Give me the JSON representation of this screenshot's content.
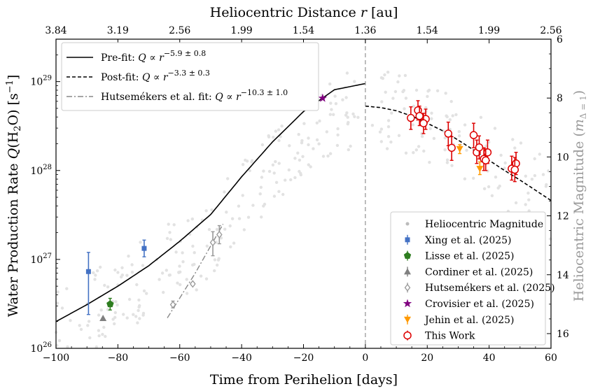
{
  "chart_data": {
    "type": "scatter",
    "xlabel": "Time from Perihelion [days]",
    "xlim": [
      -100,
      60
    ],
    "x_ticks": [
      -100,
      -80,
      -60,
      -40,
      -20,
      0,
      20,
      40,
      60
    ],
    "x_tick_labels": [
      "−100",
      "−80",
      "−60",
      "−40",
      "−20",
      "0",
      "20",
      "40",
      "60"
    ],
    "ylabel": "Water Production Rate Q(H₂O) [s⁻¹]",
    "ylabel_parts": {
      "main": "Water Production Rate ",
      "q": "Q",
      "open": "(H",
      "sub": "2",
      "mid": "O) [s",
      "sup": "−1",
      "close": "]"
    },
    "yscale": "log",
    "ylim": [
      1e+26,
      3e+29
    ],
    "y_ticks": [
      1e+26,
      1e+27,
      1e+28,
      1e+29
    ],
    "y_tick_labels": [
      {
        "base": "10",
        "exp": "26"
      },
      {
        "base": "10",
        "exp": "27"
      },
      {
        "base": "10",
        "exp": "28"
      },
      {
        "base": "10",
        "exp": "29"
      }
    ],
    "top_axis": {
      "label": "Heliocentric Distance",
      "label_var": "r",
      "label_unit": "[au]",
      "tick_positions_days": [
        -100,
        -80,
        -60,
        -40,
        -20,
        0,
        20,
        40,
        60
      ],
      "tick_labels": [
        "3.84",
        "3.19",
        "2.56",
        "1.99",
        "1.54",
        "1.36",
        "1.54",
        "1.99",
        "2.56"
      ]
    },
    "right_axis": {
      "label": "Heliocentric Magnitude",
      "label_var": "m",
      "label_sub": "Δ = 1",
      "ylim": [
        6,
        16.5
      ],
      "inverted": true,
      "ticks": [
        6,
        8,
        10,
        12,
        14,
        16
      ],
      "tick_labels": [
        "6",
        "8",
        "10",
        "12",
        "14",
        "16"
      ],
      "color": "#999999"
    },
    "perihelion_line": {
      "x": 0,
      "style": "dashed",
      "color": "#888888"
    },
    "fits": [
      {
        "name": "Pre-fit",
        "expr_base": "Q ∝ r",
        "exponent": "−5.9 ± 0.8",
        "style": "solid",
        "color": "#000000"
      },
      {
        "name": "Post-fit",
        "expr_base": "Q ∝ r",
        "exponent": "−3.3 ± 0.3",
        "style": "dashed",
        "color": "#000000"
      },
      {
        "name": "Hutsemékers et al. fit",
        "expr_base": "Q ∝ r",
        "exponent": "−10.3 ± 1.0",
        "style": "dashdot",
        "color": "#888888"
      }
    ],
    "curves": {
      "pre_fit": {
        "x": [
          -100,
          -90,
          -80,
          -70,
          -60,
          -50,
          -40,
          -30,
          -20,
          -10,
          0
        ],
        "y": [
          2e+26,
          3.1e+26,
          5e+26,
          8.5e+26,
          1.6e+27,
          3.2e+27,
          8.5e+27,
          2.1e+28,
          4.6e+28,
          8.1e+28,
          9.5e+28
        ]
      },
      "post_fit": {
        "x": [
          0,
          5,
          10,
          15,
          20,
          25,
          30,
          35,
          40,
          45,
          50,
          55,
          60
        ],
        "y": [
          5.3e+28,
          5.1e+28,
          4.7e+28,
          4.1e+28,
          3.4e+28,
          2.8e+28,
          2.2e+28,
          1.7e+28,
          1.3e+28,
          1e+28,
          7.8e+27,
          6e+27,
          4.6e+27
        ]
      },
      "hutsemekers_fit": {
        "x": [
          -64,
          -55,
          -46
        ],
        "y": [
          2.2e+26,
          7e+26,
          2.5e+27
        ]
      }
    },
    "series": [
      {
        "name": "Xing et al. (2025)",
        "marker": "square",
        "color": "#4472c4",
        "points": [
          {
            "x": -89.5,
            "y": 7.3e+26,
            "ylo": 2.4e+26,
            "yhi": 1.2e+27
          },
          {
            "x": -71.5,
            "y": 1.33e+27,
            "ylo": 1.07e+27,
            "yhi": 1.65e+27
          }
        ]
      },
      {
        "name": "Lisse et al. (2025)",
        "marker": "pentagon",
        "color": "#2e7d1f",
        "points": [
          {
            "x": -82.5,
            "y": 3.15e+26,
            "ylo": 2.7e+26,
            "yhi": 3.65e+26
          }
        ]
      },
      {
        "name": "Cordiner et al. (2025)",
        "marker": "triangle",
        "color": "#808080",
        "points": [
          {
            "x": -84.8,
            "y": 2.18e+26
          }
        ]
      },
      {
        "name": "Hutsemékers et al. (2025)",
        "marker": "diamond-open",
        "color": "#999999",
        "points": [
          {
            "x": -62.2,
            "y": 3.1e+26,
            "ylo": 2.85e+26,
            "yhi": 3.4e+26
          },
          {
            "x": -55.8,
            "y": 5.3e+26,
            "ylo": 5.1e+26,
            "yhi": 5.5e+26
          },
          {
            "x": -49.3,
            "y": 1.55e+27,
            "ylo": 1.1e+27,
            "yhi": 2.05e+27
          },
          {
            "x": -47.2,
            "y": 1.9e+27,
            "ylo": 1.5e+27,
            "yhi": 2.4e+27
          }
        ]
      },
      {
        "name": "Crovisier et al. (2025)",
        "marker": "star",
        "color": "#800080",
        "points": [
          {
            "x": -13.8,
            "y": 6.5e+28
          }
        ]
      },
      {
        "name": "Jehin et al. (2025)",
        "marker": "triangle-down",
        "color": "#ff9900",
        "points": [
          {
            "x": 30.5,
            "y": 1.75e+28,
            "ylo": 1.55e+28,
            "yhi": 1.95e+28
          },
          {
            "x": 37.0,
            "y": 1.05e+28,
            "ylo": 9e+27,
            "yhi": 1.25e+28
          }
        ]
      },
      {
        "name": "This Work",
        "marker": "circle-open",
        "color": "#dd0000",
        "points": [
          {
            "x": 14.7,
            "y": 3.9e+28,
            "ylo": 2.9e+28,
            "yhi": 5.2e+28
          },
          {
            "x": 17.0,
            "y": 4.75e+28,
            "ylo": 3.7e+28,
            "yhi": 6.1e+28
          },
          {
            "x": 17.5,
            "y": 4.1e+28,
            "ylo": 3.2e+28,
            "yhi": 5.3e+28
          },
          {
            "x": 19.5,
            "y": 3.8e+28,
            "ylo": 2.9e+28,
            "yhi": 4.9e+28
          },
          {
            "x": 18.8,
            "y": 3.4e+28,
            "ylo": 2.6e+28,
            "yhi": 4.4e+28
          },
          {
            "x": 26.8,
            "y": 2.6e+28,
            "ylo": 1.9e+28,
            "yhi": 3.5e+28
          },
          {
            "x": 27.9,
            "y": 1.8e+28,
            "ylo": 1.3e+28,
            "yhi": 2.4e+28
          },
          {
            "x": 35.0,
            "y": 2.5e+28,
            "ylo": 1.8e+28,
            "yhi": 3.4e+28
          },
          {
            "x": 36.0,
            "y": 1.6e+28,
            "ylo": 1.2e+28,
            "yhi": 2.2e+28
          },
          {
            "x": 36.8,
            "y": 1.82e+28,
            "ylo": 1.35e+28,
            "yhi": 2.45e+28
          },
          {
            "x": 38.3,
            "y": 1.35e+28,
            "ylo": 1e+28,
            "yhi": 1.8e+28
          },
          {
            "x": 39.5,
            "y": 1.6e+28,
            "ylo": 1.2e+28,
            "yhi": 2.2e+28
          },
          {
            "x": 38.9,
            "y": 1.3e+28,
            "ylo": 1e+28,
            "yhi": 1.75e+28
          },
          {
            "x": 47.3,
            "y": 1.05e+28,
            "ylo": 7.8e+27,
            "yhi": 1.45e+28
          },
          {
            "x": 48.7,
            "y": 1.2e+28,
            "ylo": 9e+27,
            "yhi": 1.6e+28
          },
          {
            "x": 48.3,
            "y": 1.02e+28,
            "ylo": 7.5e+27,
            "yhi": 1.4e+28
          }
        ]
      }
    ],
    "background_series": {
      "name": "Heliocentric Magnitude",
      "color": "#cccccc",
      "description_axis": "right"
    },
    "legend_fits_placement": "top-left",
    "legend_points_placement": "bottom-right",
    "legend_points": [
      {
        "name": "Heliocentric Magnitude",
        "marker": "dot",
        "color": "#bbbbbb"
      },
      {
        "name": "Xing et al. (2025)",
        "marker": "square",
        "color": "#4472c4"
      },
      {
        "name": "Lisse et al. (2025)",
        "marker": "pentagon",
        "color": "#2e7d1f"
      },
      {
        "name": "Cordiner et al. (2025)",
        "marker": "triangle",
        "color": "#808080"
      },
      {
        "name": "Hutsemékers et al. (2025)",
        "marker": "diamond-open",
        "color": "#999999"
      },
      {
        "name": "Crovisier et al. (2025)",
        "marker": "star",
        "color": "#800080"
      },
      {
        "name": "Jehin et al. (2025)",
        "marker": "triangle-down",
        "color": "#ff9900"
      },
      {
        "name": "This Work",
        "marker": "circle-open",
        "color": "#dd0000"
      }
    ]
  }
}
